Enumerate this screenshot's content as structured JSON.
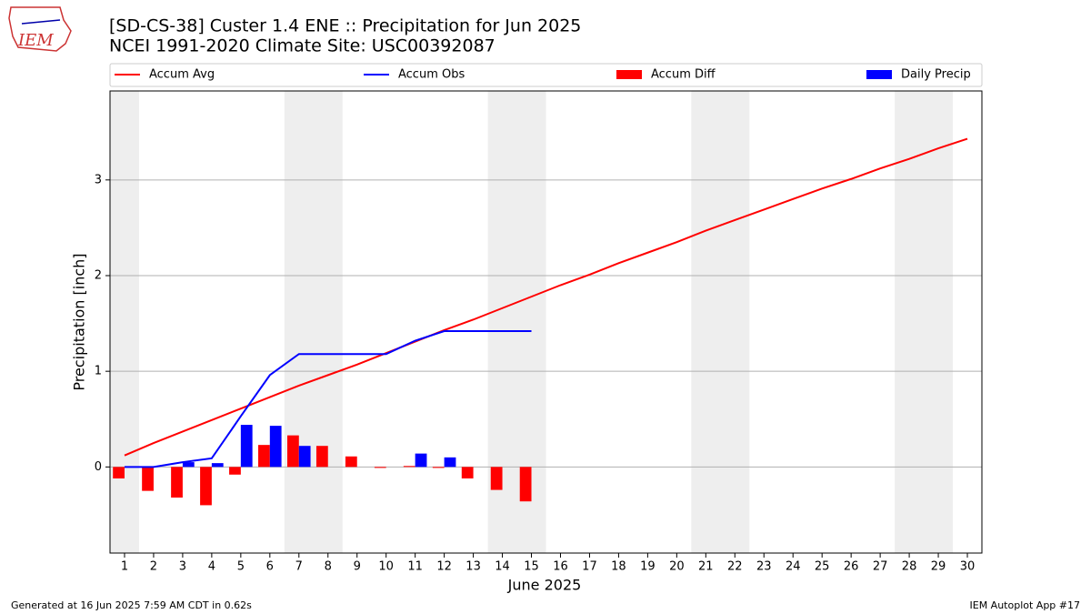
{
  "chart_data": {
    "type": "combo",
    "title": "[SD-CS-38] Custer 1.4 ENE :: Precipitation for Jun 2025",
    "subtitle": "NCEI 1991-2020 Climate Site: USC00392087",
    "logo_text": "IEM",
    "x_label": "June 2025",
    "y_label": "Precipitation [inch]",
    "footer_left": "Generated at 16 Jun 2025 7:59 AM CDT in 0.62s",
    "footer_right": "IEM Autoplot App #17",
    "x": [
      1,
      2,
      3,
      4,
      5,
      6,
      7,
      8,
      9,
      10,
      11,
      12,
      13,
      14,
      15,
      16,
      17,
      18,
      19,
      20,
      21,
      22,
      23,
      24,
      25,
      26,
      27,
      28,
      29,
      30
    ],
    "xlim": [
      0.5,
      30.5
    ],
    "xticks": [
      1,
      2,
      3,
      4,
      5,
      6,
      7,
      8,
      9,
      10,
      11,
      12,
      13,
      14,
      15,
      16,
      17,
      18,
      19,
      20,
      21,
      22,
      23,
      24,
      25,
      26,
      27,
      28,
      29,
      30
    ],
    "ylim": [
      -0.9,
      3.93
    ],
    "yticks": [
      0,
      1,
      2,
      3
    ],
    "grid": true,
    "shaded_ranges": [
      [
        0.5,
        1.5
      ],
      [
        6.5,
        8.5
      ],
      [
        13.5,
        15.5
      ],
      [
        20.5,
        22.5
      ],
      [
        27.5,
        29.5
      ]
    ],
    "shade_color": "#eeeeee",
    "series": [
      {
        "name": "Accum Avg",
        "type": "line",
        "color": "#ff0000",
        "values": [
          0.12,
          0.25,
          0.37,
          0.49,
          0.61,
          0.73,
          0.85,
          0.96,
          1.07,
          1.19,
          1.31,
          1.43,
          1.54,
          1.66,
          1.78,
          1.9,
          2.01,
          2.13,
          2.24,
          2.35,
          2.47,
          2.58,
          2.69,
          2.8,
          2.91,
          3.01,
          3.12,
          3.22,
          3.33,
          3.43
        ]
      },
      {
        "name": "Accum Obs",
        "type": "line",
        "color": "#0000ff",
        "values": [
          0,
          0,
          0.05,
          0.09,
          0.53,
          0.96,
          1.18,
          1.18,
          1.18,
          1.18,
          1.32,
          1.42,
          1.42,
          1.42,
          1.42,
          null,
          null,
          null,
          null,
          null,
          null,
          null,
          null,
          null,
          null,
          null,
          null,
          null,
          null,
          null
        ]
      },
      {
        "name": "Accum Diff",
        "type": "bar",
        "color": "#ff0000",
        "values": [
          -0.12,
          -0.25,
          -0.32,
          -0.4,
          -0.08,
          0.23,
          0.33,
          0.22,
          0.11,
          -0.01,
          0.01,
          -0.01,
          -0.12,
          -0.24,
          -0.36,
          null,
          null,
          null,
          null,
          null,
          null,
          null,
          null,
          null,
          null,
          null,
          null,
          null,
          null,
          null
        ]
      },
      {
        "name": "Daily Precip",
        "type": "bar",
        "color": "#0000ff",
        "values": [
          0,
          0,
          0.05,
          0.04,
          0.44,
          0.43,
          0.22,
          0,
          0,
          0,
          0.14,
          0.1,
          0,
          0,
          0,
          null,
          null,
          null,
          null,
          null,
          null,
          null,
          null,
          null,
          null,
          null,
          null,
          null,
          null,
          null
        ]
      }
    ]
  }
}
